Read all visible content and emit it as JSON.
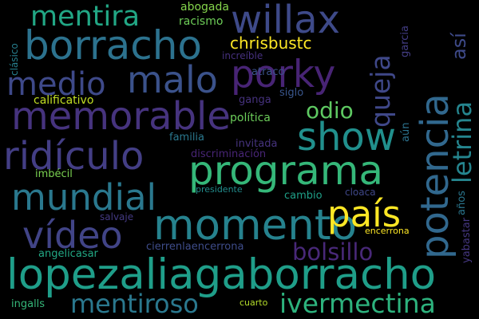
{
  "words": [
    {
      "text": "lopezaliagaborracho",
      "color": "#1f9e89"
    },
    {
      "text": "programa",
      "color": "#35b779"
    },
    {
      "text": "momento",
      "color": "#26828e"
    },
    {
      "text": "potencia",
      "color": "#31688e"
    },
    {
      "text": "borracho",
      "color": "#2c728e"
    },
    {
      "text": "memorable",
      "color": "#46337e"
    },
    {
      "text": "willax",
      "color": "#3e4a89"
    },
    {
      "text": "ridículo",
      "color": "#433e85"
    },
    {
      "text": "mundial",
      "color": "#2a788e"
    },
    {
      "text": "show",
      "color": "#21908d"
    },
    {
      "text": "porky",
      "color": "#482475"
    },
    {
      "text": "malo",
      "color": "#3b528b"
    },
    {
      "text": "vídeo",
      "color": "#414487"
    },
    {
      "text": "país",
      "color": "#fde725"
    },
    {
      "text": "ivermectina",
      "color": "#2db27d"
    },
    {
      "text": "mentiroso",
      "color": "#2a788e"
    },
    {
      "text": "medio",
      "color": "#3e4989"
    },
    {
      "text": "letrina",
      "color": "#25858e"
    },
    {
      "text": "mentira",
      "color": "#22a785"
    },
    {
      "text": "bolsillo",
      "color": "#482878"
    },
    {
      "text": "queja",
      "color": "#3f4889"
    },
    {
      "text": "odio",
      "color": "#5ec962"
    },
    {
      "text": "así",
      "color": "#3e4a89"
    },
    {
      "text": "chrisbustc",
      "color": "#fde725"
    },
    {
      "text": "abogada",
      "color": "#84d44b"
    },
    {
      "text": "racismo",
      "color": "#6ece58"
    },
    {
      "text": "clásico",
      "color": "#277f8e"
    },
    {
      "text": "increíble",
      "color": "#46307e"
    },
    {
      "text": "garcia",
      "color": "#433d84"
    },
    {
      "text": "atraco",
      "color": "#3b528b"
    },
    {
      "text": "calificativo",
      "color": "#c2df23"
    },
    {
      "text": "siglo",
      "color": "#39568c"
    },
    {
      "text": "ganga",
      "color": "#46327e"
    },
    {
      "text": "política",
      "color": "#6ccd5a"
    },
    {
      "text": "familia",
      "color": "#2a788e"
    },
    {
      "text": "invitada",
      "color": "#46337e"
    },
    {
      "text": "discriminación",
      "color": "#482576"
    },
    {
      "text": "aún",
      "color": "#2c728e"
    },
    {
      "text": "imbécil",
      "color": "#7ad151"
    },
    {
      "text": "presidente",
      "color": "#228d8d"
    },
    {
      "text": "cloaca",
      "color": "#3f4788"
    },
    {
      "text": "cambio",
      "color": "#1fa088"
    },
    {
      "text": "salvaje",
      "color": "#443a83"
    },
    {
      "text": "años",
      "color": "#2a768e"
    },
    {
      "text": "yabastar",
      "color": "#453781"
    },
    {
      "text": "encerrona",
      "color": "#fde725"
    },
    {
      "text": "angelicasar",
      "color": "#22a884"
    },
    {
      "text": "cierrenlaencerrona",
      "color": "#3e4c8a"
    },
    {
      "text": "ingalls",
      "color": "#35b779"
    },
    {
      "text": "cuarto",
      "color": "#b5de2b"
    }
  ]
}
